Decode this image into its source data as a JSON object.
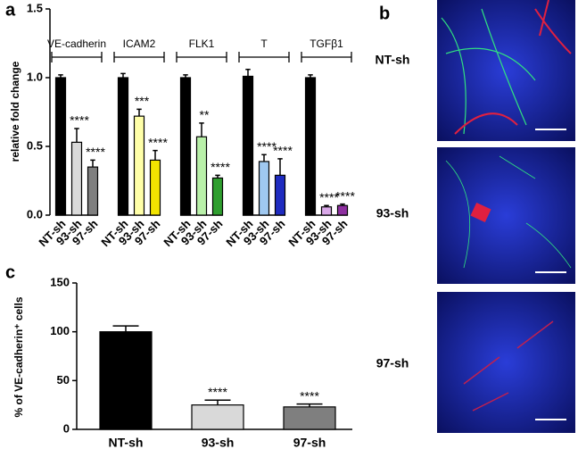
{
  "chart_data": [
    {
      "type": "grouped_bar",
      "panel": "a",
      "ylabel": "relative fold change",
      "ylim": [
        0,
        1.5
      ],
      "yticks": [
        {
          "value": 0,
          "label": "0.0"
        },
        0.5,
        {
          "value": 1,
          "label": "1.0"
        },
        1.5
      ],
      "groups": [
        {
          "name": "VE-cadherin",
          "categories": [
            "NT-sh",
            "93-sh",
            "97-sh"
          ],
          "values": [
            1.0,
            0.53,
            0.35
          ],
          "errors": [
            0.02,
            0.1,
            0.05
          ],
          "colors": [
            "#000000",
            "#d9d9d9",
            "#7f7f7f"
          ],
          "annotations": [
            null,
            "****",
            "****"
          ]
        },
        {
          "name": "ICAM2",
          "categories": [
            "NT-sh",
            "93-sh",
            "97-sh"
          ],
          "values": [
            1.0,
            0.72,
            0.4
          ],
          "errors": [
            0.03,
            0.05,
            0.07
          ],
          "colors": [
            "#000000",
            "#ffffa8",
            "#f2e400"
          ],
          "annotations": [
            null,
            "***",
            "****"
          ]
        },
        {
          "name": "FLK1",
          "categories": [
            "NT-sh",
            "93-sh",
            "97-sh"
          ],
          "values": [
            1.0,
            0.57,
            0.27
          ],
          "errors": [
            0.02,
            0.1,
            0.02
          ],
          "colors": [
            "#000000",
            "#b9f0a9",
            "#2f9e2f"
          ],
          "annotations": [
            null,
            "**",
            "****"
          ]
        },
        {
          "name": "T",
          "categories": [
            "NT-sh",
            "93-sh",
            "97-sh"
          ],
          "values": [
            1.01,
            0.39,
            0.29
          ],
          "errors": [
            0.05,
            0.05,
            0.12
          ],
          "colors": [
            "#000000",
            "#9fc8f0",
            "#1e2bc0"
          ],
          "annotations": [
            null,
            "****",
            "****"
          ]
        },
        {
          "name": "TGFβ1",
          "categories": [
            "NT-sh",
            "93-sh",
            "97-sh"
          ],
          "values": [
            1.0,
            0.06,
            0.07
          ],
          "errors": [
            0.02,
            0.01,
            0.01
          ],
          "colors": [
            "#000000",
            "#d9a8e8",
            "#8e2fa0"
          ],
          "annotations": [
            null,
            "****",
            "****"
          ]
        }
      ]
    },
    {
      "type": "bar",
      "panel": "c",
      "ylabel": "% of VE-cadherin⁺ cells",
      "ylim": [
        0,
        150
      ],
      "yticks": [
        0,
        50,
        100,
        150
      ],
      "categories": [
        "NT-sh",
        "93-sh",
        "97-sh"
      ],
      "values": [
        100,
        25,
        23
      ],
      "errors": [
        6,
        5,
        3
      ],
      "colors": [
        "#000000",
        "#d9d9d9",
        "#7f7f7f"
      ],
      "annotations": [
        null,
        "****",
        "****"
      ]
    }
  ],
  "images": {
    "panel": "b",
    "labels": [
      "NT-sh",
      "93-sh",
      "97-sh"
    ]
  }
}
